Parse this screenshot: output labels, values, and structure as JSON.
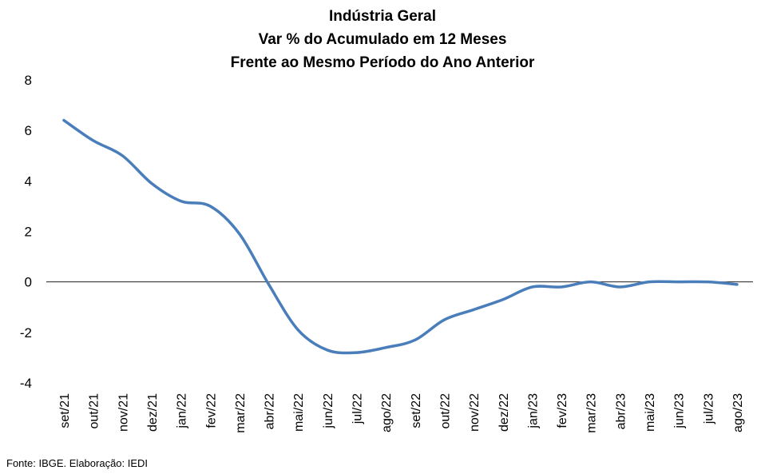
{
  "chart_data": {
    "type": "line",
    "title_lines": [
      "Indústria Geral",
      "Var % do Acumulado em 12 Meses",
      "Frente ao Mesmo Período do Ano Anterior"
    ],
    "xlabel": "",
    "ylabel": "",
    "ylim": [
      -4,
      8
    ],
    "yticks": [
      8,
      6,
      4,
      2,
      0,
      -2,
      -4
    ],
    "x": [
      "set/21",
      "out/21",
      "nov/21",
      "dez/21",
      "jan/22",
      "fev/22",
      "mar/22",
      "abr/22",
      "mai/22",
      "jun/22",
      "jul/22",
      "ago/22",
      "set/22",
      "out/22",
      "nov/22",
      "dez/22",
      "jan/23",
      "fev/23",
      "mar/23",
      "abr/23",
      "mai/23",
      "jun/23",
      "jul/23",
      "ago/23"
    ],
    "series": [
      {
        "name": "",
        "values": [
          6.4,
          5.6,
          5.0,
          3.9,
          3.2,
          3.0,
          1.9,
          -0.1,
          -1.9,
          -2.7,
          -2.8,
          -2.6,
          -2.3,
          -1.5,
          -1.1,
          -0.7,
          -0.2,
          -0.2,
          0.0,
          -0.2,
          0.0,
          0.0,
          0.0,
          -0.1
        ],
        "color": "#4a7ebb"
      }
    ],
    "grid": false,
    "legend": "none",
    "source": "Fonte: IBGE. Elaboração: IEDI"
  }
}
